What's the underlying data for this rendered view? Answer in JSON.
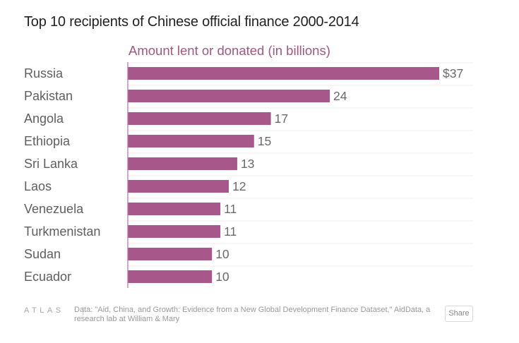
{
  "colors": {
    "bar": "#a8578a",
    "axis": "#b070a0",
    "grid": "#ececec"
  },
  "chart_data": {
    "type": "bar",
    "orientation": "horizontal",
    "title": "Top 10 recipients of Chinese official finance 2000-2014",
    "subtitle": "Amount lent or donated (in billions)",
    "categories": [
      "Russia",
      "Pakistan",
      "Angola",
      "Ethiopia",
      "Sri Lanka",
      "Laos",
      "Venezuela",
      "Turkmenistan",
      "Sudan",
      "Ecuador"
    ],
    "values": [
      37,
      24,
      17,
      15,
      13,
      12,
      11,
      11,
      10,
      10
    ],
    "value_labels": [
      "$37",
      "24",
      "17",
      "15",
      "13",
      "12",
      "11",
      "11",
      "10",
      "10"
    ],
    "xlim": [
      0,
      37
    ],
    "grid": true
  },
  "footer": {
    "brand": "ATLAS",
    "source": "Data:  \"Aid, China, and Growth: Evidence from a New Global Development Finance Dataset,\" AidData, a research lab at William & Mary",
    "share_label": "Share"
  }
}
